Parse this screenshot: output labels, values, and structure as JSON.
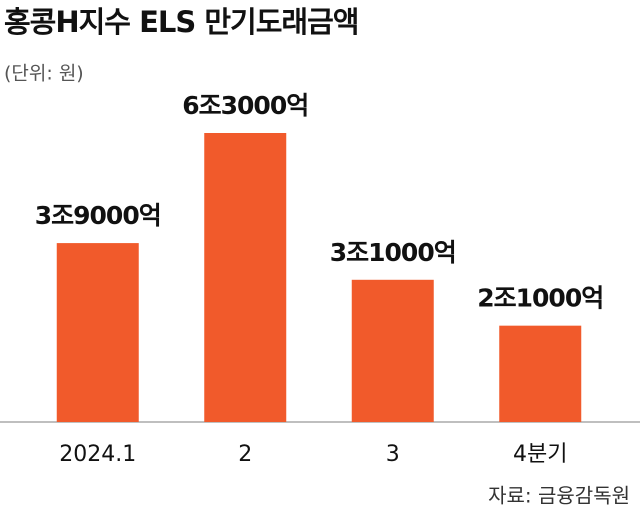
{
  "chart_data": {
    "type": "bar",
    "title": "홍콩H지수 ELS 만기도래금액",
    "subtitle": "(단위: 원)",
    "categories": [
      "2024.1",
      "2",
      "3",
      "4분기"
    ],
    "values": [
      3900000000000,
      6300000000000,
      3100000000000,
      2100000000000
    ],
    "value_labels": [
      "3조9000억",
      "6조3000억",
      "3조1000억",
      "2조1000억"
    ],
    "color": "#f15a2b",
    "source": "자료: 금융감독원"
  }
}
